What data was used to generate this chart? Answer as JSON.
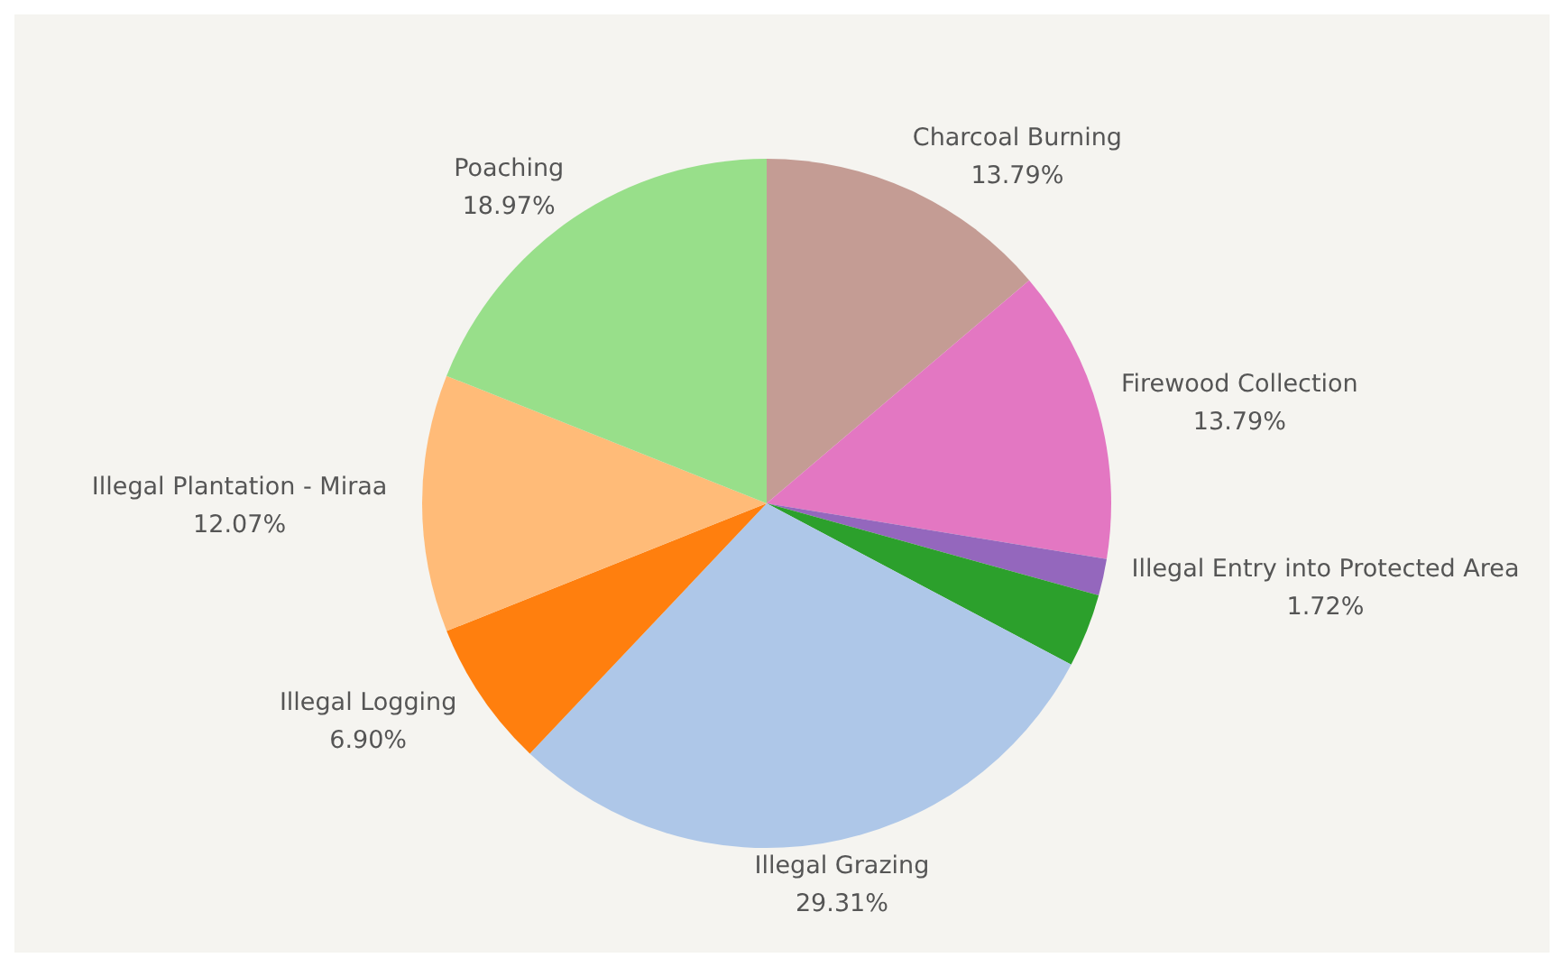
{
  "chart_data": {
    "type": "pie",
    "categories": [
      "Charcoal Burning",
      "Firewood Collection",
      "Illegal Entry into Protected Area",
      null,
      "Illegal Grazing",
      "Illegal Logging",
      "Illegal Plantation - Miraa",
      "Poaching"
    ],
    "values": [
      13.79,
      13.79,
      1.72,
      3.45,
      29.31,
      6.9,
      12.07,
      18.97
    ],
    "colors": [
      "#c49c94",
      "#e377c2",
      "#9467bd",
      "#2ca02c",
      "#aec7e8",
      "#ff7f0e",
      "#ffbb78",
      "#98df8a"
    ],
    "value_labels": [
      "13.79%",
      "13.79%",
      "1.72%",
      null,
      "29.31%",
      "6.90%",
      "12.07%",
      "18.97%"
    ]
  }
}
